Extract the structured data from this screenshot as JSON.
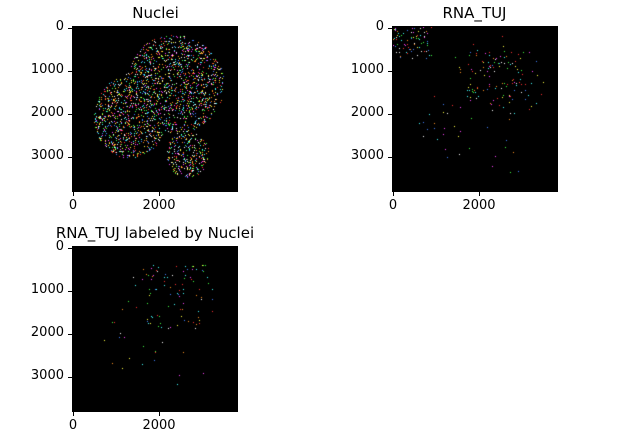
{
  "panels": [
    {
      "title": "Nuclei",
      "y_ticks": [
        "0",
        "1000",
        "2000",
        "3000"
      ],
      "x_ticks": [
        "0",
        "2000"
      ],
      "pattern": "nuclei"
    },
    {
      "title": "RNA_TUJ",
      "y_ticks": [
        "0",
        "1000",
        "2000",
        "3000"
      ],
      "x_ticks": [
        "0",
        "2000"
      ],
      "pattern": "rna"
    },
    {
      "title": "RNA_TUJ labeled by Nuclei",
      "y_ticks": [
        "0",
        "1000",
        "2000",
        "3000"
      ],
      "x_ticks": [
        "0",
        "2000"
      ],
      "pattern": "labeled"
    }
  ],
  "colors": {
    "background": "#000000",
    "speckle_palette": [
      "#ff3030",
      "#ffff40",
      "#40ff40",
      "#40ffff",
      "#4080ff",
      "#ff40ff",
      "#ffffff",
      "#ff9020"
    ]
  }
}
